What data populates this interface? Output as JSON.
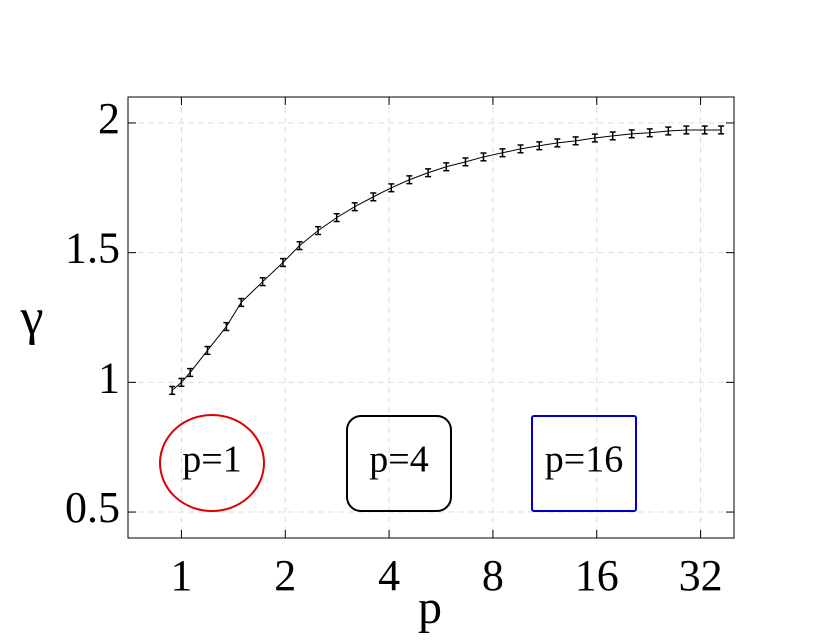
{
  "chart_data": {
    "type": "errorline",
    "x_label": "p",
    "y_label": "γ",
    "xlog": true,
    "xlim": [
      0.7,
      40
    ],
    "xticks": [
      1,
      2,
      4,
      8,
      16,
      32
    ],
    "ylim": [
      0.4,
      2.1
    ],
    "yticks": [
      0.5,
      1,
      1.5,
      2
    ],
    "grid": true,
    "series": [
      {
        "color": "#000000",
        "x": [
          0.94,
          1.0,
          1.06,
          1.19,
          1.35,
          1.49,
          1.72,
          1.97,
          2.2,
          2.49,
          2.82,
          3.18,
          3.6,
          4.06,
          4.58,
          5.19,
          5.86,
          6.66,
          7.51,
          8.53,
          9.62,
          10.9,
          12.3,
          13.9,
          15.8,
          17.8,
          20.2,
          22.8,
          25.8,
          29.1,
          32.9,
          36.7
        ],
        "values": [
          0.969,
          1.0,
          1.038,
          1.123,
          1.215,
          1.308,
          1.388,
          1.462,
          1.527,
          1.585,
          1.635,
          1.677,
          1.715,
          1.75,
          1.781,
          1.808,
          1.831,
          1.85,
          1.869,
          1.885,
          1.9,
          1.912,
          1.923,
          1.931,
          1.942,
          1.95,
          1.958,
          1.962,
          1.969,
          1.973,
          1.973,
          1.973
        ],
        "errors": [
          0.015,
          0.015,
          0.015,
          0.015,
          0.015,
          0.015,
          0.015,
          0.015,
          0.015,
          0.015,
          0.015,
          0.015,
          0.015,
          0.015,
          0.015,
          0.015,
          0.015,
          0.015,
          0.015,
          0.015,
          0.015,
          0.015,
          0.015,
          0.015,
          0.015,
          0.015,
          0.015,
          0.015,
          0.015,
          0.015,
          0.015,
          0.015
        ]
      }
    ],
    "annotations": [
      {
        "text": "p=1",
        "color": "#e00000",
        "shape": "ellipse"
      },
      {
        "text": "p=4",
        "color": "#000000",
        "shape": "rounded-box"
      },
      {
        "text": "p=16",
        "color": "#0000cc",
        "shape": "box"
      }
    ]
  }
}
